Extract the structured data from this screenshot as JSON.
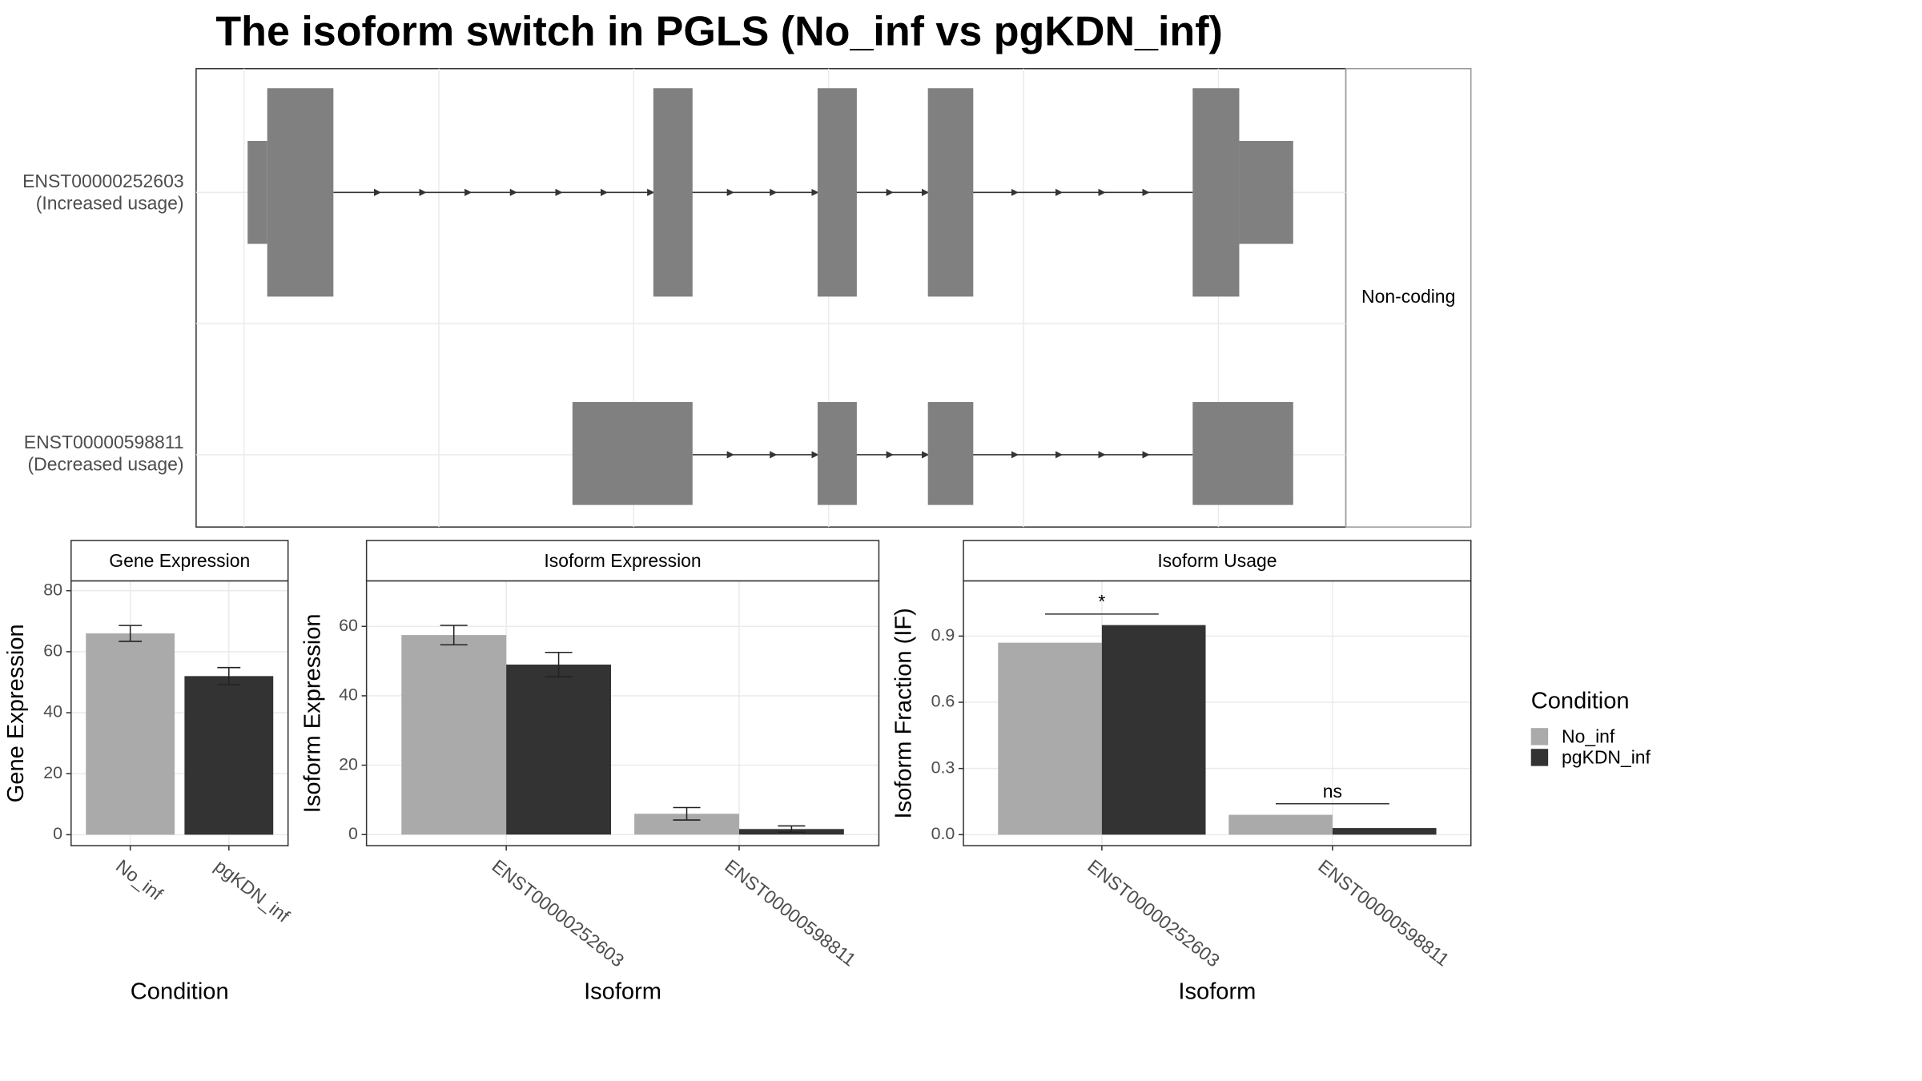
{
  "chart_data": [
    {
      "type": "transcript_structure",
      "title": "The isoform switch in PGLS (No_inf vs pgKDN_inf)",
      "transcripts": [
        {
          "name": "ENST00000252603",
          "label": "(Increased usage)"
        },
        {
          "name": "ENST00000598811",
          "label": "(Decreased usage)"
        }
      ],
      "facet": "Non-coding"
    },
    {
      "type": "bar",
      "title": "Gene Expression",
      "categories": [
        "No_inf",
        "pgKDN_inf"
      ],
      "values": [
        66,
        52
      ],
      "errors": [
        2.6,
        2.8
      ],
      "colors": [
        "#aaaaaa",
        "#333333"
      ],
      "xlabel": "Condition",
      "ylabel": "Gene Expression",
      "ylim": [
        -3.6,
        83.2
      ],
      "yticks": [
        0,
        20,
        40,
        60,
        80
      ],
      "grid": true
    },
    {
      "type": "bar",
      "title": "Isoform Expression",
      "categories": [
        "ENST00000252603",
        "ENST00000598811"
      ],
      "series": [
        {
          "name": "No_inf",
          "color": "#aaaaaa",
          "values": [
            57.5,
            6
          ],
          "errors": [
            2.8,
            1.8
          ]
        },
        {
          "name": "pgKDN_inf",
          "color": "#333333",
          "values": [
            49,
            1.6
          ],
          "errors": [
            3.5,
            0.9
          ]
        }
      ],
      "xlabel": "Isoform",
      "ylabel": "Isoform Expression",
      "ylim": [
        -3.2,
        73.1
      ],
      "yticks": [
        0,
        20,
        40,
        60
      ],
      "grid": true
    },
    {
      "type": "bar",
      "title": "Isoform Usage",
      "categories": [
        "ENST00000252603",
        "ENST00000598811"
      ],
      "series": [
        {
          "name": "No_inf",
          "color": "#aaaaaa",
          "values": [
            0.87,
            0.09
          ]
        },
        {
          "name": "pgKDN_inf",
          "color": "#333333",
          "values": [
            0.95,
            0.03
          ]
        }
      ],
      "annotations": [
        {
          "text": "*",
          "y": 1.0
        },
        {
          "text": "ns",
          "y": 0.14
        }
      ],
      "xlabel": "Isoform",
      "ylabel": "Isoform Fraction (IF)",
      "ylim": [
        -0.05,
        1.15
      ],
      "yticks": [
        {
          "value": 0,
          "label": "0.0"
        },
        0.3,
        0.6,
        0.9
      ],
      "grid": true,
      "legend_title": "Condition"
    }
  ]
}
